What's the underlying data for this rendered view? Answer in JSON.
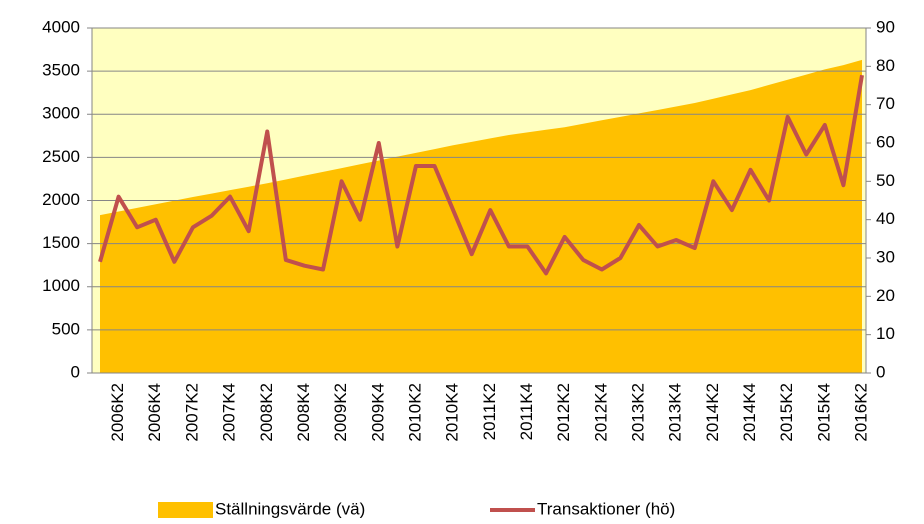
{
  "chart_data": {
    "type": "combo",
    "categories": [
      null,
      "2006K2",
      null,
      "2006K4",
      null,
      "2007K2",
      null,
      "2007K4",
      null,
      "2008K2",
      null,
      "2008K4",
      null,
      "2009K2",
      null,
      "2009K4",
      null,
      "2010K2",
      null,
      "2010K4",
      null,
      "2011K2",
      null,
      "2011K4",
      null,
      "2012K2",
      null,
      "2012K4",
      null,
      "2013K2",
      null,
      "2013K4",
      null,
      "2014K2",
      null,
      "2014K4",
      null,
      "2015K2",
      null,
      "2015K4",
      null,
      "2016K2"
    ],
    "series": [
      {
        "name": "Ställningsvärde (vä)",
        "type": "area",
        "color": "#ffc000",
        "values": [
          1830,
          1872,
          1914,
          1956,
          1998,
          2040,
          2080,
          2120,
          2160,
          2200,
          2244,
          2288,
          2332,
          2376,
          2420,
          2464,
          2508,
          2552,
          2596,
          2640,
          2680,
          2720,
          2760,
          2790,
          2820,
          2850,
          2890,
          2930,
          2970,
          3010,
          3050,
          3090,
          3130,
          3180,
          3230,
          3280,
          3340,
          3400,
          3460,
          3520,
          3570,
          3630
        ]
      },
      {
        "name": "Transaktioner (hö)",
        "type": "line",
        "color": "#c0504d",
        "axis": "y2",
        "values": [
          29,
          46,
          38,
          40,
          29,
          38,
          41,
          46,
          37,
          63,
          29.5,
          28,
          27,
          50,
          40,
          60,
          33,
          54,
          54,
          42.5,
          31,
          42.5,
          33,
          33,
          26,
          35.5,
          29.5,
          27,
          30,
          38.6,
          33,
          34.7,
          32.6,
          50,
          42.5,
          53,
          45,
          66.8,
          57,
          64.7,
          49,
          77.7
        ]
      }
    ],
    "ylim": [
      0,
      4000
    ],
    "yticks": [
      0,
      500,
      1000,
      1500,
      2000,
      2500,
      3000,
      3500,
      4000
    ],
    "y2lim": [
      0,
      90
    ],
    "y2ticks": [
      0,
      10,
      20,
      30,
      40,
      50,
      60,
      70,
      80,
      90
    ],
    "grid": true,
    "plot_background": "#ffffc0",
    "legend": "bottom"
  }
}
